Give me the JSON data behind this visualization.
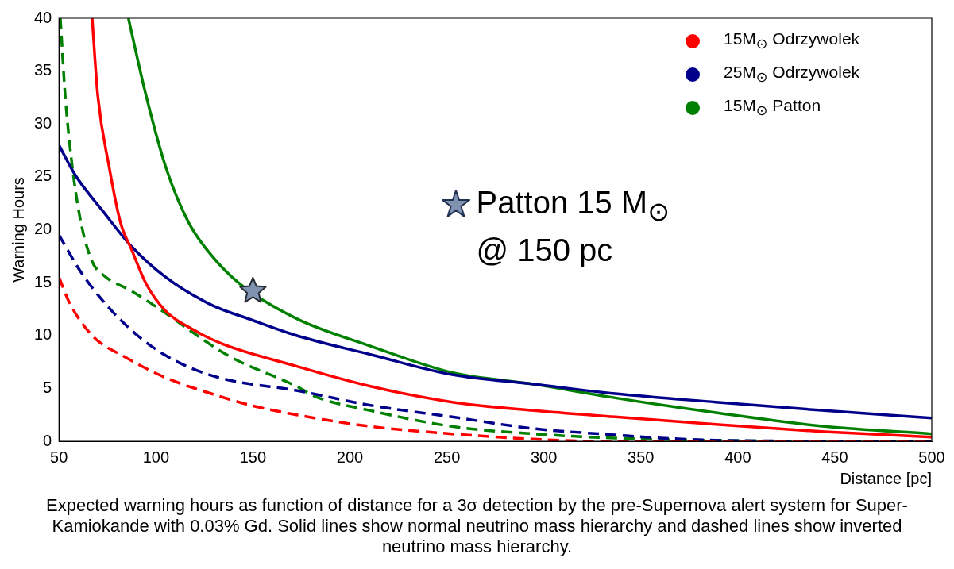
{
  "chart_data": {
    "type": "line",
    "xlabel": "Distance [pc]",
    "ylabel": "Warning Hours",
    "xlim": [
      50,
      500
    ],
    "xticks": [
      50,
      100,
      150,
      200,
      250,
      300,
      350,
      400,
      450,
      500
    ],
    "ylim": [
      0,
      40
    ],
    "yticks": [
      0,
      5,
      10,
      15,
      20,
      25,
      30,
      35,
      40
    ],
    "grid": false,
    "legend": "top right",
    "marker": "none",
    "series": [
      {
        "name": "15M$_{⊙}$ Odrzywolek",
        "color": "#ff0000",
        "line_style": "solid",
        "x": [
          67.1,
          70.0,
          75.9,
          81.7,
          87.5,
          94.9,
          105.1,
          119.7,
          134.3,
          172.4,
          210.6,
          252.7,
          294.7,
          336.8,
          388.7,
          444.7,
          500
        ],
        "values": [
          40,
          32.7,
          25.9,
          20.7,
          18.1,
          14.9,
          12.3,
          10.5,
          9.2,
          7.1,
          5.2,
          3.7,
          2.9,
          2.3,
          1.6,
          0.9,
          0.4
        ]
      },
      {
        "name": "25M$_{⊙}$ Odrzywolek",
        "color": "#00008b",
        "line_style": "solid",
        "x": [
          50,
          58.3,
          72.9,
          87.5,
          105.1,
          128.5,
          148.9,
          172.4,
          210.6,
          252.7,
          294.7,
          336.8,
          388.7,
          444.7,
          500
        ],
        "values": [
          28.0,
          25.2,
          21.7,
          18.4,
          15.5,
          12.9,
          11.5,
          10.0,
          8.2,
          6.3,
          5.4,
          4.5,
          3.7,
          2.9,
          2.2
        ]
      },
      {
        "name": "15M$_{⊙}$ Patton",
        "color": "#008000",
        "line_style": "solid",
        "x": [
          85.8,
          94.9,
          105.1,
          116.8,
          128.5,
          143.1,
          172.4,
          210.6,
          252.7,
          294.7,
          336.8,
          388.7,
          444.7,
          500
        ],
        "values": [
          40,
          32.7,
          25.9,
          20.7,
          17.6,
          14.9,
          11.6,
          9.0,
          6.5,
          5.4,
          4.1,
          2.7,
          1.4,
          0.7
        ]
      },
      {
        "color": "#ff0000",
        "line_style": "dashed",
        "x": [
          50,
          55.4,
          67.1,
          84.7,
          105.1,
          128.5,
          148.9,
          172.4,
          210.6,
          252.7,
          294.7,
          330,
          400,
          500
        ],
        "values": [
          15.5,
          13.1,
          10.0,
          7.9,
          6.0,
          4.5,
          3.4,
          2.5,
          1.4,
          0.7,
          0.2,
          0,
          0,
          0
        ]
      },
      {
        "color": "#00008b",
        "line_style": "dashed",
        "x": [
          50,
          61.3,
          75.9,
          90.5,
          105.1,
          119.7,
          137.2,
          172.4,
          210.6,
          252.7,
          294.7,
          336.8,
          360.6,
          402.6,
          500
        ],
        "values": [
          19.5,
          16.0,
          12.6,
          10.0,
          8.1,
          6.8,
          5.8,
          4.8,
          3.4,
          2.3,
          1.2,
          0.6,
          0.3,
          0.05,
          0
        ]
      },
      {
        "color": "#008000",
        "line_style": "dashed",
        "x": [
          50.7,
          53.2,
          56.9,
          61.3,
          67.1,
          72.9,
          87.5,
          105.1,
          119.7,
          137.2,
          172.4,
          182.6,
          210.6,
          252.7,
          294.7,
          336.8,
          400,
          450,
          500
        ],
        "values": [
          40,
          32.7,
          25.9,
          20.7,
          17.0,
          15.7,
          14.2,
          12.1,
          10.2,
          8.1,
          5.2,
          4.2,
          2.9,
          1.4,
          0.7,
          0.3,
          0.05,
          0,
          0
        ]
      },
      {
        "type": "scatter",
        "marker": "star",
        "color": "#7f93b1",
        "x": [
          150
        ],
        "values": [
          14.2
        ]
      }
    ],
    "annotations": [
      "Patton 15 M$_{⊙}$\n@ 150 pc",
      "Expected warning hours as function of distance for a 3σ detection by the pre-Supernova alert system for Super-Kamiokande with 0.03% Gd. Solid lines show normal neutrino mass hierarchy and dashed lines show inverted neutrino mass hierarchy."
    ]
  }
}
